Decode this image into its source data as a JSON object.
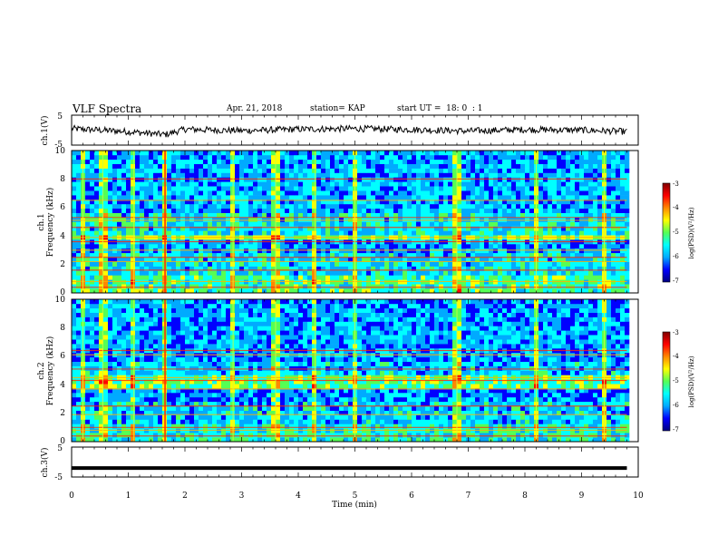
{
  "header": {
    "title": "VLF Spectra",
    "date": "Apr. 21, 2018",
    "station": "station= KAP",
    "start": "start UT =  18: 0  : 1"
  },
  "panels": {
    "ch1": {
      "ylabel": "ch.1(V)",
      "yticks": [
        "5",
        "-5"
      ]
    },
    "spec1": {
      "ylabel_line1": "ch.1",
      "ylabel_line2": "Frequency (kHz)",
      "yticks": [
        "10",
        "8",
        "6",
        "4",
        "2",
        "0"
      ]
    },
    "spec2": {
      "ylabel_line1": "ch.2",
      "ylabel_line2": "Frequency (kHz)",
      "yticks": [
        "10",
        "8",
        "6",
        "4",
        "2",
        "0"
      ]
    },
    "ch3": {
      "ylabel": "ch.3(V)",
      "yticks": [
        "5",
        "-5"
      ]
    }
  },
  "xaxis": {
    "label": "Time (min)",
    "ticks": [
      "0",
      "1",
      "2",
      "3",
      "4",
      "5",
      "6",
      "7",
      "8",
      "9",
      "10"
    ]
  },
  "colorbar": {
    "label": "log(PSD)(V²/Hz)",
    "ticks": [
      "-3",
      "-4",
      "-5",
      "-6",
      "-7"
    ],
    "colors": [
      "#00007f",
      "#0000ff",
      "#00aaff",
      "#00ffff",
      "#55ff55",
      "#ffff00",
      "#ff8800",
      "#ff0000",
      "#7f0000"
    ]
  },
  "chart_data": [
    {
      "type": "line",
      "title": "VLF Spectra",
      "ylabel": "ch.1(V)",
      "xlabel": "",
      "xlim": [
        0,
        10
      ],
      "ylim": [
        -5,
        5
      ],
      "series": [
        {
          "x": [
            0,
            1,
            1.65,
            2,
            3,
            4,
            5,
            6,
            7,
            8,
            9,
            9.8
          ],
          "values": [
            0.5,
            -0.5,
            -1.5,
            0.3,
            -0.2,
            0.3,
            0.5,
            0.2,
            -0.3,
            0.2,
            0.0,
            -0.5
          ]
        }
      ]
    },
    {
      "type": "heatmap",
      "ylabel": "Frequency (kHz)",
      "xlim": [
        0,
        10
      ],
      "ylim": [
        0,
        10
      ],
      "zlim": [
        -7,
        -3
      ],
      "bright_bursts_min": [
        0.2,
        0.55,
        1.1,
        1.65,
        2.85,
        3.6,
        4.3,
        5.0,
        6.8,
        8.2,
        9.4
      ],
      "line_bands_khz": [
        0.4,
        0.8,
        1.6,
        2.2,
        2.5,
        3.0,
        3.6,
        3.9,
        4.6,
        5.1,
        5.3,
        6.5,
        8.0
      ],
      "bands": [
        {
          "from": 0,
          "to": 1.3,
          "value": -5.2
        },
        {
          "from": 1.3,
          "to": 2.8,
          "value": -5.6
        },
        {
          "from": 2.8,
          "to": 3.6,
          "value": -5.9
        },
        {
          "from": 3.6,
          "to": 4.2,
          "value": -4.9
        },
        {
          "from": 4.2,
          "to": 5.5,
          "value": -5.6
        },
        {
          "from": 5.5,
          "to": 10,
          "value": -5.8
        }
      ]
    },
    {
      "type": "heatmap",
      "ylabel": "Frequency (kHz)",
      "xlim": [
        0,
        10
      ],
      "ylim": [
        0,
        10
      ],
      "zlim": [
        -7,
        -3
      ],
      "bright_bursts_min": [
        0.2,
        0.55,
        1.1,
        1.65,
        2.85,
        3.6,
        4.3,
        5.0,
        6.8,
        8.2,
        9.4
      ],
      "line_bands_khz": [
        0.4,
        0.8,
        1.0,
        1.9,
        2.5,
        3.7,
        4.3,
        4.5,
        5.1,
        6.1,
        6.4
      ],
      "bands": [
        {
          "from": 0,
          "to": 1.3,
          "value": -5.4
        },
        {
          "from": 1.3,
          "to": 2.8,
          "value": -5.7
        },
        {
          "from": 2.8,
          "to": 3.6,
          "value": -6.0
        },
        {
          "from": 3.6,
          "to": 4.6,
          "value": -5.1
        },
        {
          "from": 4.6,
          "to": 5.5,
          "value": -5.7
        },
        {
          "from": 5.5,
          "to": 10,
          "value": -5.9
        }
      ]
    },
    {
      "type": "line",
      "ylabel": "ch.3(V)",
      "xlabel": "Time (min)",
      "xlim": [
        0,
        10
      ],
      "ylim": [
        -5,
        5
      ],
      "series": [
        {
          "x": [
            0,
            9.8
          ],
          "values": [
            -2,
            -2
          ]
        }
      ]
    }
  ]
}
